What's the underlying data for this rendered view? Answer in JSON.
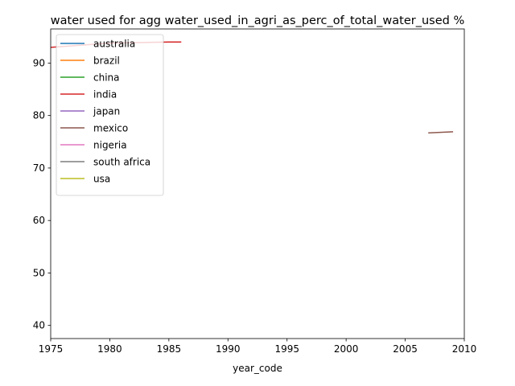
{
  "chart_data": {
    "type": "line",
    "title": "water used for agg water_used_in_agri_as_perc_of_total_water_used %",
    "xlabel": "year_code",
    "ylabel": "",
    "xlim": [
      1975,
      2010
    ],
    "ylim": [
      37.5,
      96.5
    ],
    "xticks": [
      1975,
      1980,
      1985,
      1990,
      1995,
      2000,
      2005,
      2010
    ],
    "yticks": [
      40,
      50,
      60,
      70,
      80,
      90
    ],
    "grid": false,
    "legend_position": "top-left",
    "series": [
      {
        "name": "australia",
        "color": "#1f77b4",
        "points": []
      },
      {
        "name": "brazil",
        "color": "#ff7f0e",
        "points": []
      },
      {
        "name": "china",
        "color": "#2ca02c",
        "points": []
      },
      {
        "name": "india",
        "color": "#d62728",
        "points": [
          [
            1975,
            93
          ],
          [
            1980,
            93.8
          ],
          [
            1985,
            94
          ],
          [
            1986,
            94
          ]
        ]
      },
      {
        "name": "japan",
        "color": "#9467bd",
        "points": []
      },
      {
        "name": "mexico",
        "color": "#8c564b",
        "points": [
          [
            2007,
            76.7
          ],
          [
            2009,
            76.9
          ]
        ]
      },
      {
        "name": "nigeria",
        "color": "#e377c2",
        "points": []
      },
      {
        "name": "south africa",
        "color": "#7f7f7f",
        "points": []
      },
      {
        "name": "usa",
        "color": "#bcbd22",
        "points": []
      }
    ]
  }
}
